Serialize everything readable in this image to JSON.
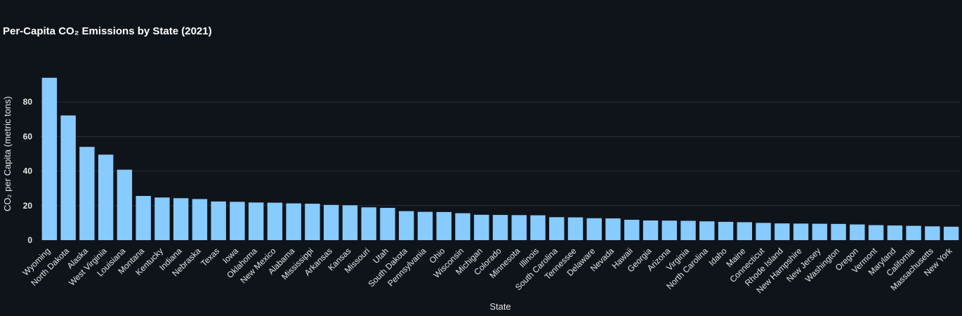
{
  "chart_data": {
    "type": "bar",
    "title": "Per-Capita CO₂ Emissions by State (2021)",
    "xlabel": "State",
    "ylabel": "CO₂ per Capita (metric tons)",
    "ylim": [
      0,
      100
    ],
    "yticks": [
      0,
      20,
      40,
      60,
      80
    ],
    "grid": true,
    "bar_color": "#87cbff",
    "background": "#0f131a",
    "categories": [
      "Wyoming",
      "North Dakota",
      "Alaska",
      "West Virginia",
      "Louisiana",
      "Montana",
      "Kentucky",
      "Indiana",
      "Nebraska",
      "Texas",
      "Iowa",
      "Oklahoma",
      "New Mexico",
      "Alabama",
      "Mississippi",
      "Arkansas",
      "Kansas",
      "Missouri",
      "Utah",
      "South Dakota",
      "Pennsylvania",
      "Ohio",
      "Wisconsin",
      "Michigan",
      "Colorado",
      "Minnesota",
      "Illinois",
      "South Carolina",
      "Tennessee",
      "Delaware",
      "Nevada",
      "Hawaii",
      "Georgia",
      "Arizona",
      "Virginia",
      "North Carolina",
      "Idaho",
      "Maine",
      "Connecticut",
      "Rhode Island",
      "New Hampshire",
      "New Jersey",
      "Washington",
      "Oregon",
      "Vermont",
      "Maryland",
      "California",
      "Massachusetts",
      "New York"
    ],
    "values": [
      94.0,
      72.2,
      54.0,
      49.5,
      40.8,
      25.6,
      24.7,
      24.3,
      23.8,
      22.4,
      22.2,
      21.8,
      21.7,
      21.3,
      21.1,
      20.4,
      20.2,
      19.0,
      18.7,
      16.8,
      16.4,
      16.3,
      15.6,
      14.7,
      14.6,
      14.5,
      14.4,
      13.3,
      13.2,
      12.7,
      12.6,
      11.8,
      11.4,
      11.3,
      11.2,
      10.9,
      10.6,
      10.4,
      10.0,
      9.7,
      9.6,
      9.5,
      9.4,
      9.1,
      8.7,
      8.5,
      8.3,
      8.0,
      7.8
    ]
  }
}
